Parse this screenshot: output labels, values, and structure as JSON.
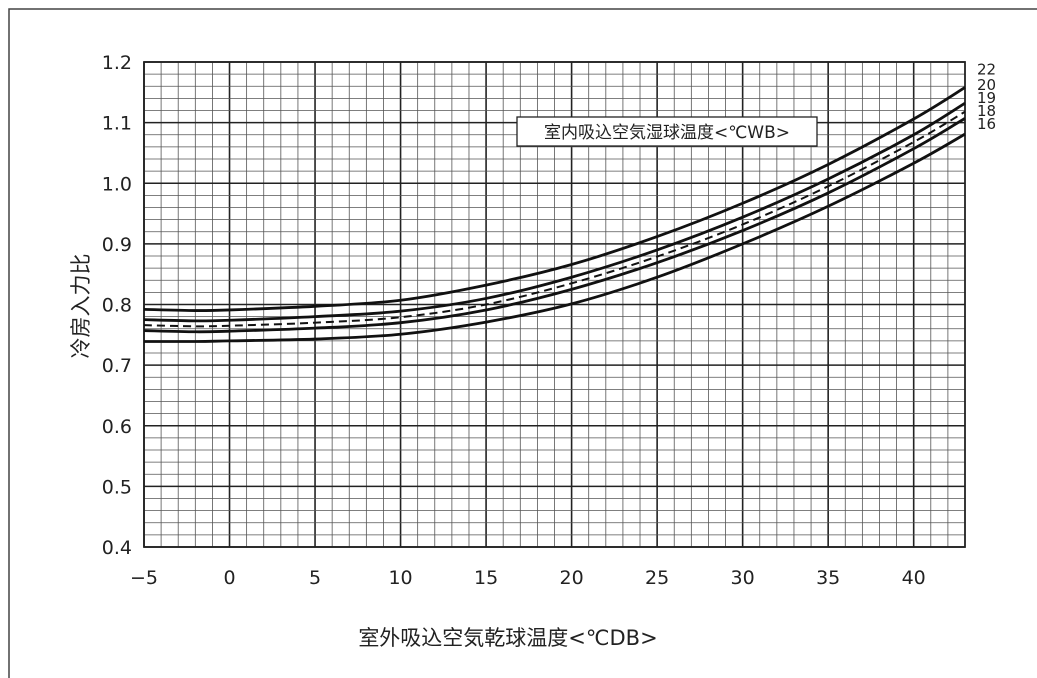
{
  "chart_data": {
    "type": "line",
    "xlabel": "室外吸込空気乾球温度<℃DB>",
    "ylabel": "冷房入力比",
    "legend_title": "室内吸込空気湿球温度<℃WB>",
    "xlim": [
      -5,
      43
    ],
    "ylim": [
      0.4,
      1.2
    ],
    "x_ticks": [
      -5,
      0,
      5,
      10,
      15,
      20,
      25,
      30,
      35,
      40
    ],
    "x_tick_labels": [
      "−5",
      "0",
      "5",
      "10",
      "15",
      "20",
      "25",
      "30",
      "35",
      "40"
    ],
    "y_ticks": [
      0.4,
      0.5,
      0.6,
      0.7,
      0.8,
      0.9,
      1.0,
      1.1,
      1.2
    ],
    "y_tick_labels": [
      "0.4",
      "0.5",
      "0.6",
      "0.7",
      "0.8",
      "0.9",
      "1.0",
      "1.1",
      "1.2"
    ],
    "grid": true,
    "series": [
      {
        "name": "22",
        "dashed": false,
        "x": [
          -5,
          -2,
          0,
          5,
          10,
          15,
          20,
          25,
          30,
          35,
          40,
          43
        ],
        "y": [
          0.792,
          0.79,
          0.791,
          0.797,
          0.807,
          0.832,
          0.866,
          0.912,
          0.967,
          1.031,
          1.106,
          1.158
        ]
      },
      {
        "name": "20",
        "dashed": false,
        "x": [
          -5,
          -2,
          0,
          5,
          10,
          15,
          20,
          25,
          30,
          35,
          40,
          43
        ],
        "y": [
          0.775,
          0.773,
          0.774,
          0.78,
          0.789,
          0.81,
          0.845,
          0.89,
          0.944,
          1.007,
          1.08,
          1.132
        ]
      },
      {
        "name": "19",
        "dashed": true,
        "x": [
          -5,
          -2,
          0,
          5,
          10,
          15,
          20,
          25,
          30,
          35,
          40,
          43
        ],
        "y": [
          0.766,
          0.764,
          0.765,
          0.77,
          0.779,
          0.8,
          0.835,
          0.879,
          0.932,
          0.995,
          1.068,
          1.118
        ]
      },
      {
        "name": "18",
        "dashed": false,
        "x": [
          -5,
          -2,
          0,
          5,
          10,
          15,
          20,
          25,
          30,
          35,
          40,
          43
        ],
        "y": [
          0.757,
          0.755,
          0.756,
          0.761,
          0.77,
          0.791,
          0.825,
          0.869,
          0.922,
          0.984,
          1.057,
          1.107
        ]
      },
      {
        "name": "16",
        "dashed": false,
        "x": [
          -5,
          -2,
          0,
          5,
          10,
          15,
          20,
          25,
          30,
          35,
          40,
          43
        ],
        "y": [
          0.739,
          0.739,
          0.74,
          0.743,
          0.751,
          0.771,
          0.801,
          0.845,
          0.9,
          0.962,
          1.033,
          1.081
        ]
      }
    ]
  }
}
